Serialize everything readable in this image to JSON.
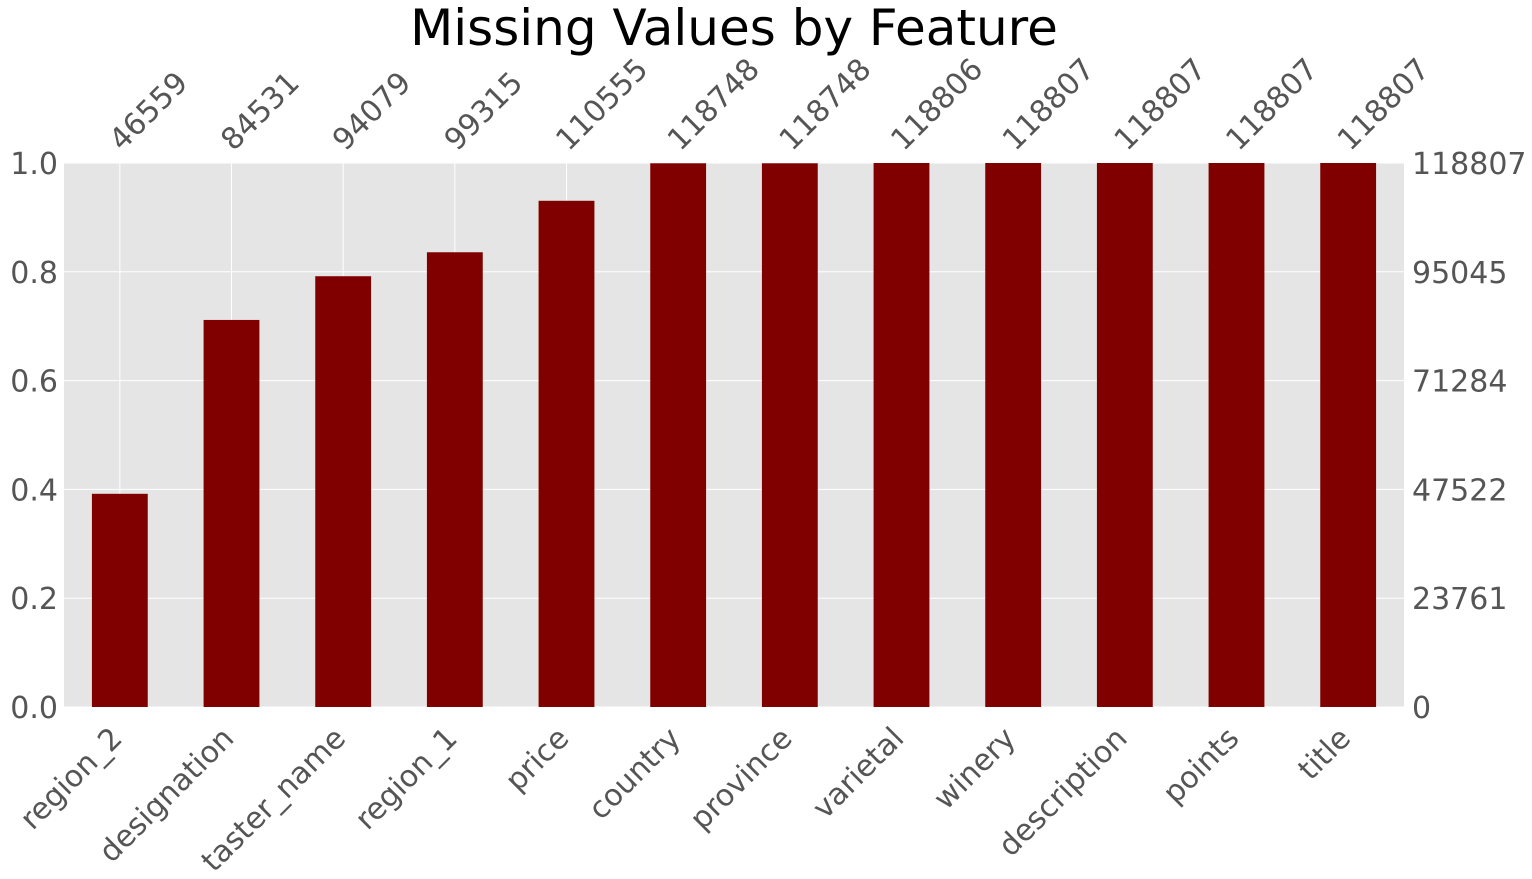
{
  "chart_data": {
    "type": "bar",
    "title": "Missing Values by Feature",
    "categories": [
      "region_2",
      "designation",
      "taster_name",
      "region_1",
      "price",
      "country",
      "province",
      "varietal",
      "winery",
      "description",
      "points",
      "title"
    ],
    "values": [
      46559,
      84531,
      94079,
      99315,
      110555,
      118748,
      118748,
      118806,
      118807,
      118807,
      118807,
      118807
    ],
    "total": 118807,
    "left_axis": {
      "ticks": [
        "0.0",
        "0.2",
        "0.4",
        "0.6",
        "0.8",
        "1.0"
      ],
      "ylim": [
        0,
        1
      ]
    },
    "right_axis": {
      "ticks": [
        "0",
        "23761",
        "47522",
        "71284",
        "95045",
        "118807"
      ]
    },
    "grid": true,
    "bar_color": "#800000",
    "plot_background": "#e5e5e5",
    "text_color": "#555555"
  }
}
